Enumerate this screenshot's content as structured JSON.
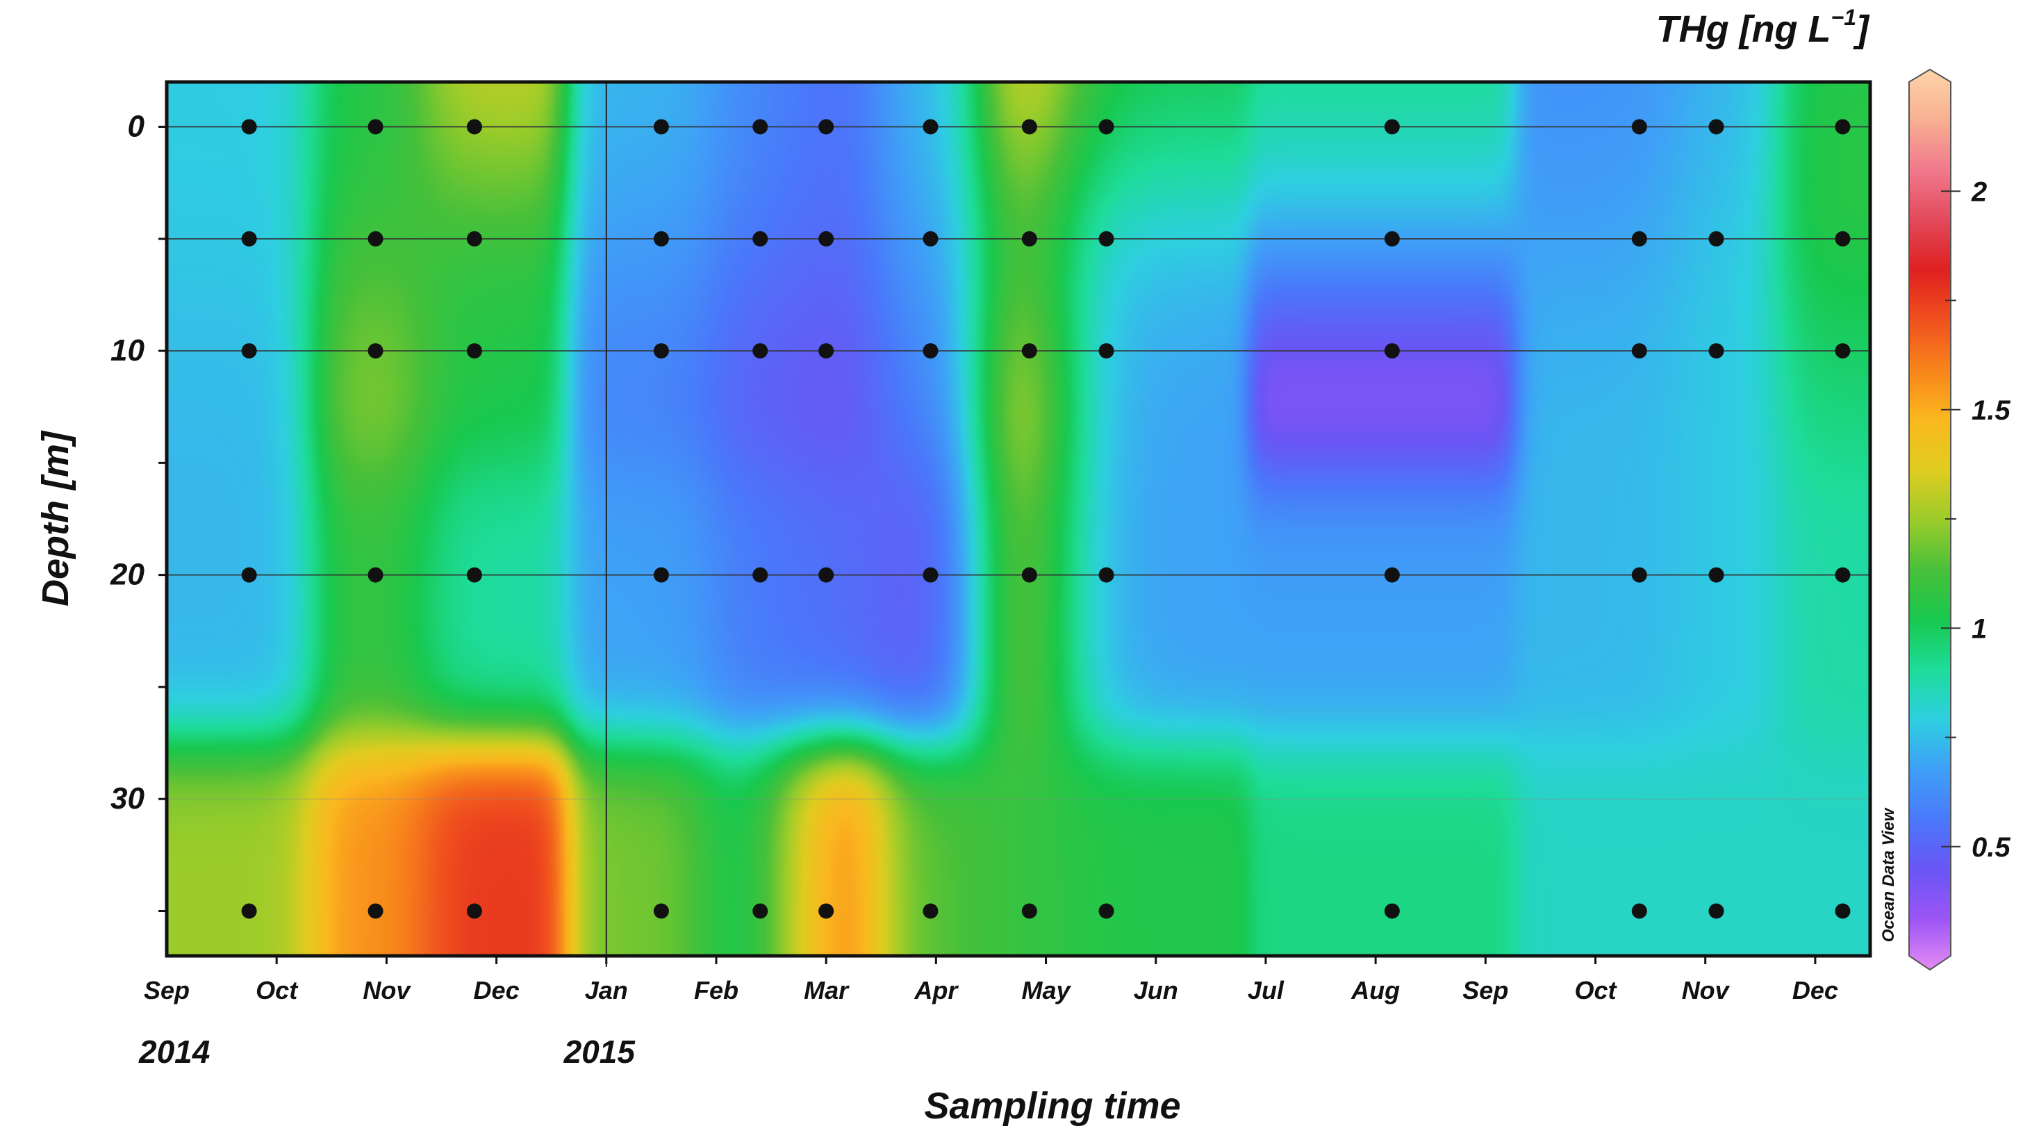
{
  "chart_data": {
    "type": "heatmap",
    "title": "",
    "colorbar_title": "THg [ng L",
    "colorbar_unit_exp": "−1",
    "colorbar_unit_close": "]",
    "xlabel": "Sampling time",
    "ylabel": "Depth [m]",
    "watermark": "Ocean Data View",
    "month_ticks": [
      "Sep",
      "Oct",
      "Nov",
      "Dec",
      "Jan",
      "Feb",
      "Mar",
      "Apr",
      "May",
      "Jun",
      "Jul",
      "Aug",
      "Sep",
      "Oct",
      "Nov",
      "Dec"
    ],
    "year_labels": [
      "2014",
      "2015"
    ],
    "y_ticks": [
      "0",
      "10",
      "20",
      "30"
    ],
    "y_tick_values": [
      0,
      10,
      20,
      30
    ],
    "ylim": [
      37,
      -2
    ],
    "x_month_range": [
      0,
      15.5
    ],
    "year_boundary_month": 4,
    "colorbar_ticks": [
      "0.5",
      "1",
      "1.5",
      "2"
    ],
    "colorbar_tick_values": [
      0.5,
      1,
      1.5,
      2
    ],
    "colorbar_range": [
      0.25,
      2.25
    ],
    "colormap": [
      "#e58cf5",
      "#9d55f5",
      "#6a55f5",
      "#4a78fa",
      "#3fa0f7",
      "#2ecfe0",
      "#1edc9a",
      "#18c84e",
      "#48c03a",
      "#9ccc2a",
      "#e0cc20",
      "#fab81e",
      "#f8841c",
      "#f0501e",
      "#de2020",
      "#e24a5c",
      "#f07a8c",
      "#f8b092",
      "#fdd4a8"
    ],
    "sample_depths": [
      0,
      5,
      10,
      20,
      35
    ],
    "sample_months": [
      0.75,
      1.9,
      2.8,
      4.5,
      5.4,
      6.0,
      6.95,
      7.85,
      8.55,
      11.15,
      13.4,
      14.1,
      15.25
    ],
    "field_samples": [
      {
        "t": 0.75,
        "z": 0,
        "v": 0.8
      },
      {
        "t": 1.9,
        "z": 0,
        "v": 1.05
      },
      {
        "t": 2.8,
        "z": 0,
        "v": 1.35
      },
      {
        "t": 4.5,
        "z": 0,
        "v": 0.75
      },
      {
        "t": 5.4,
        "z": 0,
        "v": 0.65
      },
      {
        "t": 6.0,
        "z": 0,
        "v": 0.55
      },
      {
        "t": 6.95,
        "z": 0,
        "v": 0.75
      },
      {
        "t": 7.85,
        "z": 0,
        "v": 1.45
      },
      {
        "t": 8.55,
        "z": 0,
        "v": 1.05
      },
      {
        "t": 11.15,
        "z": 0,
        "v": 0.95
      },
      {
        "t": 13.4,
        "z": 0,
        "v": 0.65
      },
      {
        "t": 14.1,
        "z": 0,
        "v": 0.75
      },
      {
        "t": 15.25,
        "z": 0,
        "v": 1.05
      },
      {
        "t": 0.75,
        "z": 5,
        "v": 0.8
      },
      {
        "t": 1.9,
        "z": 5,
        "v": 1.1
      },
      {
        "t": 2.8,
        "z": 5,
        "v": 1.05
      },
      {
        "t": 4.5,
        "z": 5,
        "v": 0.7
      },
      {
        "t": 5.4,
        "z": 5,
        "v": 0.6
      },
      {
        "t": 6.0,
        "z": 5,
        "v": 0.55
      },
      {
        "t": 6.95,
        "z": 5,
        "v": 0.7
      },
      {
        "t": 7.85,
        "z": 5,
        "v": 1.05
      },
      {
        "t": 8.55,
        "z": 5,
        "v": 0.75
      },
      {
        "t": 11.15,
        "z": 5,
        "v": 0.75
      },
      {
        "t": 13.4,
        "z": 5,
        "v": 0.7
      },
      {
        "t": 14.1,
        "z": 5,
        "v": 0.8
      },
      {
        "t": 15.25,
        "z": 5,
        "v": 1.1
      },
      {
        "t": 0.75,
        "z": 10,
        "v": 0.75
      },
      {
        "t": 1.9,
        "z": 10,
        "v": 1.25
      },
      {
        "t": 2.8,
        "z": 10,
        "v": 1.05
      },
      {
        "t": 4.5,
        "z": 10,
        "v": 0.6
      },
      {
        "t": 5.4,
        "z": 10,
        "v": 0.5
      },
      {
        "t": 6.0,
        "z": 10,
        "v": 0.45
      },
      {
        "t": 6.95,
        "z": 10,
        "v": 0.6
      },
      {
        "t": 7.85,
        "z": 10,
        "v": 1.4
      },
      {
        "t": 8.55,
        "z": 10,
        "v": 0.7
      },
      {
        "t": 11.15,
        "z": 10,
        "v": 0.32
      },
      {
        "t": 13.4,
        "z": 10,
        "v": 0.75
      },
      {
        "t": 14.1,
        "z": 10,
        "v": 0.8
      },
      {
        "t": 15.25,
        "z": 10,
        "v": 0.95
      },
      {
        "t": 0.75,
        "z": 20,
        "v": 0.75
      },
      {
        "t": 1.9,
        "z": 20,
        "v": 1.1
      },
      {
        "t": 2.8,
        "z": 20,
        "v": 0.9
      },
      {
        "t": 4.5,
        "z": 20,
        "v": 0.7
      },
      {
        "t": 5.4,
        "z": 20,
        "v": 0.6
      },
      {
        "t": 6.0,
        "z": 20,
        "v": 0.55
      },
      {
        "t": 6.95,
        "z": 20,
        "v": 0.5
      },
      {
        "t": 7.85,
        "z": 20,
        "v": 1.25
      },
      {
        "t": 8.55,
        "z": 20,
        "v": 0.7
      },
      {
        "t": 11.15,
        "z": 20,
        "v": 0.7
      },
      {
        "t": 13.4,
        "z": 20,
        "v": 0.75
      },
      {
        "t": 14.1,
        "z": 20,
        "v": 0.8
      },
      {
        "t": 15.25,
        "z": 20,
        "v": 0.9
      },
      {
        "t": 0.75,
        "z": 35,
        "v": 1.25
      },
      {
        "t": 1.9,
        "z": 35,
        "v": 1.55
      },
      {
        "t": 2.8,
        "z": 35,
        "v": 1.75
      },
      {
        "t": 4.5,
        "z": 35,
        "v": 1.2
      },
      {
        "t": 5.4,
        "z": 35,
        "v": 0.95
      },
      {
        "t": 6.0,
        "z": 35,
        "v": 1.65
      },
      {
        "t": 6.95,
        "z": 35,
        "v": 1.15
      },
      {
        "t": 7.85,
        "z": 35,
        "v": 1.1
      },
      {
        "t": 8.55,
        "z": 35,
        "v": 1.05
      },
      {
        "t": 11.15,
        "z": 35,
        "v": 0.95
      },
      {
        "t": 13.4,
        "z": 35,
        "v": 0.85
      },
      {
        "t": 14.1,
        "z": 35,
        "v": 0.85
      },
      {
        "t": 15.25,
        "z": 35,
        "v": 0.85
      }
    ],
    "grid": false
  }
}
